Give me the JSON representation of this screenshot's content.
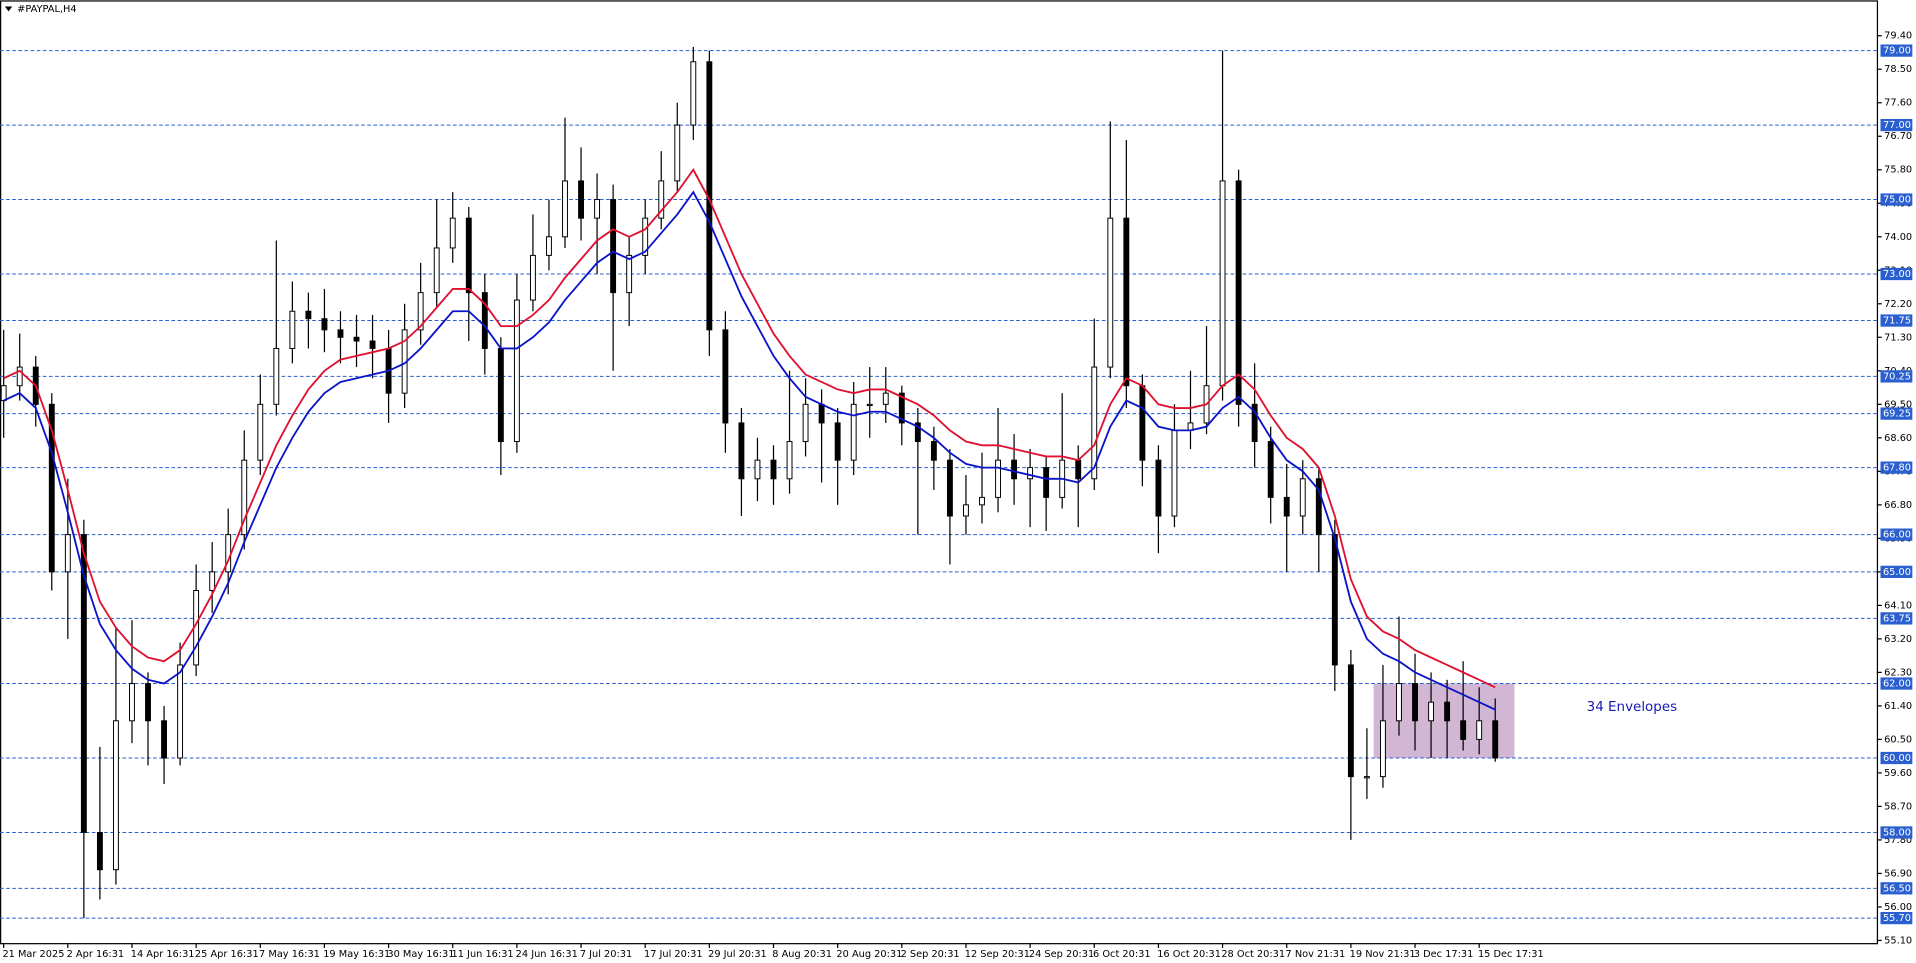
{
  "chart_data": {
    "type": "candlestick",
    "title": "#PAYPAL,H4",
    "annotation": "34 Envelopes",
    "categories": [
      "21 Mar 2025",
      null,
      null,
      null,
      "2 Apr 16:31",
      null,
      null,
      null,
      "14 Apr 16:31",
      null,
      null,
      null,
      "25 Apr 16:31",
      null,
      null,
      null,
      "7 May 16:31",
      null,
      null,
      null,
      "19 May 16:31",
      null,
      null,
      null,
      "30 May 16:31",
      null,
      null,
      null,
      "11 Jun 16:31",
      null,
      null,
      null,
      "24 Jun 16:31",
      null,
      null,
      null,
      "7 Jul 20:31",
      null,
      null,
      null,
      "17 Jul 20:31",
      null,
      null,
      null,
      "29 Jul 20:31",
      null,
      null,
      null,
      "8 Aug 20:31",
      null,
      null,
      null,
      "20 Aug 20:31",
      null,
      null,
      null,
      "2 Sep 20:31",
      null,
      null,
      null,
      "12 Sep 20:31",
      null,
      null,
      null,
      "24 Sep 20:31",
      null,
      null,
      null,
      "6 Oct 20:31",
      null,
      null,
      null,
      "16 Oct 20:31",
      null,
      null,
      null,
      "28 Oct 20:31",
      null,
      null,
      null,
      "7 Nov 21:31",
      null,
      null,
      null,
      "19 Nov 21:31",
      null,
      null,
      null,
      "3 Dec 17:31",
      null,
      null,
      null,
      "15 Dec 17:31",
      null
    ],
    "open": [
      69.6,
      70.0,
      70.5,
      69.5,
      65.0,
      66.0,
      58.0,
      57.0,
      61.0,
      62.0,
      61.0,
      60.0,
      62.5,
      64.5,
      65.0,
      66.0,
      68.0,
      69.5,
      71.0,
      72.0,
      71.8,
      71.5,
      71.3,
      71.2,
      71.0,
      69.8,
      71.5,
      72.5,
      73.7,
      74.5,
      72.5,
      71.0,
      68.5,
      72.3,
      73.5,
      74.0,
      75.5,
      74.5,
      75.0,
      72.5,
      73.5,
      74.5,
      75.5,
      77.0,
      78.7,
      71.5,
      69.0,
      67.5,
      68.0,
      67.5,
      68.5,
      69.5,
      69.0,
      68.0,
      69.5,
      69.5,
      69.8,
      69.0,
      68.5,
      68.0,
      66.5,
      66.8,
      67.0,
      68.0,
      67.5,
      67.8,
      67.0,
      68.0,
      67.5,
      70.5,
      74.5,
      70.0,
      68.0,
      66.5,
      68.8,
      69.0,
      70.0,
      75.5,
      69.5,
      68.5,
      67.0,
      66.5,
      67.5,
      66.0,
      62.5,
      59.5,
      59.5,
      61.0,
      62.0,
      61.0,
      61.5,
      61.0,
      60.5,
      61.0
    ],
    "high": [
      71.5,
      71.4,
      70.8,
      69.8,
      67.5,
      66.4,
      60.3,
      63.5,
      63.7,
      62.3,
      61.4,
      63.1,
      65.2,
      65.8,
      66.7,
      68.8,
      70.3,
      73.9,
      72.8,
      72.5,
      72.6,
      72.0,
      71.9,
      71.9,
      71.5,
      72.2,
      73.3,
      75.0,
      75.2,
      74.8,
      73.0,
      71.3,
      73.0,
      74.6,
      75.0,
      77.2,
      76.4,
      75.7,
      75.4,
      74.0,
      75.0,
      76.3,
      77.6,
      79.1,
      79.0,
      72.0,
      69.4,
      68.6,
      68.4,
      70.4,
      70.2,
      69.9,
      69.4,
      70.1,
      70.5,
      70.5,
      70.0,
      69.4,
      68.9,
      68.3,
      67.6,
      68.2,
      69.4,
      68.7,
      68.3,
      68.1,
      69.8,
      68.4,
      71.8,
      77.1,
      76.6,
      70.3,
      68.4,
      69.5,
      70.4,
      71.6,
      79.0,
      75.8,
      70.6,
      68.9,
      67.9,
      68.0,
      67.8,
      66.4,
      62.9,
      60.8,
      62.5,
      63.8,
      62.8,
      62.3,
      62.1,
      62.6,
      61.9,
      61.6
    ],
    "low": [
      68.6,
      69.6,
      68.9,
      64.5,
      63.2,
      55.7,
      56.2,
      56.6,
      60.4,
      59.8,
      59.3,
      59.8,
      62.2,
      63.9,
      64.4,
      65.6,
      67.6,
      69.2,
      70.6,
      71.0,
      70.9,
      70.6,
      70.5,
      70.2,
      69.0,
      69.4,
      71.1,
      72.1,
      73.3,
      71.2,
      70.3,
      67.6,
      68.2,
      72.0,
      73.1,
      73.7,
      73.9,
      73.0,
      70.4,
      71.6,
      73.0,
      74.2,
      75.2,
      76.6,
      70.8,
      68.2,
      66.5,
      66.9,
      66.8,
      67.1,
      68.1,
      67.4,
      66.8,
      67.6,
      68.6,
      69.0,
      68.4,
      66.0,
      67.2,
      65.2,
      66.0,
      66.3,
      66.6,
      66.8,
      66.2,
      66.1,
      66.7,
      66.2,
      67.2,
      70.2,
      69.4,
      67.3,
      65.5,
      66.2,
      68.3,
      68.7,
      69.6,
      68.9,
      67.8,
      66.3,
      65.0,
      66.0,
      65.0,
      61.8,
      57.8,
      58.9,
      59.2,
      60.6,
      60.2,
      60.0,
      60.0,
      60.2,
      60.1,
      59.9
    ],
    "close": [
      70.0,
      70.5,
      69.5,
      65.0,
      66.0,
      58.0,
      57.0,
      61.0,
      62.0,
      61.0,
      60.0,
      62.5,
      64.5,
      65.0,
      66.0,
      68.0,
      69.5,
      71.0,
      72.0,
      71.8,
      71.5,
      71.3,
      71.2,
      71.0,
      69.8,
      71.5,
      72.5,
      73.7,
      74.5,
      72.5,
      71.0,
      68.5,
      72.3,
      73.5,
      74.0,
      75.5,
      74.5,
      75.0,
      72.5,
      73.5,
      74.5,
      75.5,
      77.0,
      78.7,
      71.5,
      69.0,
      67.5,
      68.0,
      67.5,
      68.5,
      69.5,
      69.0,
      68.0,
      69.5,
      69.5,
      69.8,
      69.0,
      68.5,
      68.0,
      66.5,
      66.8,
      67.0,
      68.0,
      67.5,
      67.8,
      67.0,
      68.0,
      67.5,
      70.5,
      74.5,
      70.0,
      68.0,
      66.5,
      68.8,
      69.0,
      70.0,
      75.5,
      69.5,
      68.5,
      67.0,
      66.5,
      67.5,
      66.0,
      62.5,
      59.5,
      59.5,
      61.0,
      62.0,
      61.0,
      61.5,
      61.0,
      60.5,
      61.0,
      60.0
    ],
    "up_color": "#ffffff",
    "down_color": "#000000",
    "envelopes": [
      {
        "color": "#e0102f",
        "values": [
          70.2,
          70.4,
          70.0,
          68.8,
          67.2,
          65.5,
          64.2,
          63.5,
          63.0,
          62.7,
          62.6,
          62.9,
          63.6,
          64.4,
          65.3,
          66.4,
          67.4,
          68.4,
          69.2,
          69.9,
          70.4,
          70.7,
          70.8,
          70.9,
          71.0,
          71.2,
          71.6,
          72.1,
          72.6,
          72.6,
          72.2,
          71.6,
          71.6,
          71.9,
          72.3,
          72.9,
          73.4,
          73.9,
          74.2,
          74.0,
          74.2,
          74.7,
          75.2,
          75.8,
          75.0,
          74.0,
          73.0,
          72.2,
          71.4,
          70.8,
          70.3,
          70.1,
          69.9,
          69.8,
          69.9,
          69.9,
          69.7,
          69.5,
          69.2,
          68.8,
          68.5,
          68.4,
          68.4,
          68.3,
          68.2,
          68.1,
          68.1,
          68.0,
          68.4,
          69.5,
          70.2,
          70.0,
          69.5,
          69.4,
          69.4,
          69.5,
          70.0,
          70.3,
          69.9,
          69.2,
          68.6,
          68.3,
          67.8,
          66.5,
          64.8,
          63.8,
          63.4,
          63.2,
          62.9,
          62.7,
          62.5,
          62.3,
          62.1,
          61.9
        ]
      },
      {
        "color": "#0a14c8",
        "values": [
          69.6,
          69.8,
          69.4,
          68.2,
          66.6,
          64.9,
          63.6,
          62.9,
          62.4,
          62.1,
          62.0,
          62.3,
          63.0,
          63.8,
          64.7,
          65.8,
          66.8,
          67.8,
          68.6,
          69.3,
          69.8,
          70.1,
          70.2,
          70.3,
          70.4,
          70.6,
          71.0,
          71.5,
          72.0,
          72.0,
          71.6,
          71.0,
          71.0,
          71.3,
          71.7,
          72.3,
          72.8,
          73.3,
          73.6,
          73.4,
          73.6,
          74.1,
          74.6,
          75.2,
          74.4,
          73.4,
          72.4,
          71.6,
          70.8,
          70.2,
          69.7,
          69.5,
          69.3,
          69.2,
          69.3,
          69.3,
          69.1,
          68.9,
          68.6,
          68.2,
          67.9,
          67.8,
          67.8,
          67.7,
          67.6,
          67.5,
          67.5,
          67.4,
          67.8,
          68.9,
          69.6,
          69.4,
          68.9,
          68.8,
          68.8,
          68.9,
          69.4,
          69.7,
          69.3,
          68.6,
          68.0,
          67.7,
          67.2,
          65.9,
          64.2,
          63.2,
          62.8,
          62.6,
          62.3,
          62.1,
          61.9,
          61.7,
          61.5,
          61.3
        ]
      }
    ],
    "zone": {
      "ymin": 60,
      "ymax": 62,
      "color": "#c9aacb"
    },
    "level_color": "#2a5fd0",
    "levels": [
      {
        "value": 79,
        "label": "79.00"
      },
      {
        "value": 77,
        "label": "77.00"
      },
      {
        "value": 75,
        "label": "75.00"
      },
      {
        "value": 73,
        "label": "73.00"
      },
      {
        "value": 71.75,
        "label": "71.75"
      },
      {
        "value": 70.25,
        "label": "70.25"
      },
      {
        "value": 69.25,
        "label": "69.25"
      },
      {
        "value": 67.8,
        "label": "67.80"
      },
      {
        "value": 66,
        "label": "66.00"
      },
      {
        "value": 65,
        "label": "65.00"
      },
      {
        "value": 63.75,
        "label": "63.75"
      },
      {
        "value": 62,
        "label": "62.00"
      },
      {
        "value": 60,
        "label": "60.00"
      },
      {
        "value": 58,
        "label": "58.00"
      },
      {
        "value": 56.5,
        "label": "56.50"
      },
      {
        "value": 55.7,
        "label": "55.70"
      }
    ],
    "ylim": [
      55.03,
      80.35
    ],
    "yticks": [
      {
        "value": 79.4,
        "label": "79.40"
      },
      {
        "value": 78.5,
        "label": "78.50"
      },
      {
        "value": 77.6,
        "label": "77.60"
      },
      {
        "value": 76.7,
        "label": "76.70"
      },
      {
        "value": 75.8,
        "label": "75.80"
      },
      {
        "value": 74.9,
        "label": "74.90"
      },
      {
        "value": 74,
        "label": "74.00"
      },
      {
        "value": 73.1,
        "label": "73.10"
      },
      {
        "value": 72.2,
        "label": "72.20"
      },
      {
        "value": 71.3,
        "label": "71.30"
      },
      {
        "value": 70.4,
        "label": "70.40"
      },
      {
        "value": 69.5,
        "label": "69.50"
      },
      {
        "value": 68.6,
        "label": "68.60"
      },
      {
        "value": 67.7,
        "label": "67.70"
      },
      {
        "value": 66.8,
        "label": "66.80"
      },
      {
        "value": 65.9,
        "label": "65.90"
      },
      {
        "value": 65,
        "label": "65.00"
      },
      {
        "value": 64.1,
        "label": "64.10"
      },
      {
        "value": 63.2,
        "label": "63.20"
      },
      {
        "value": 62.3,
        "label": "62.30"
      },
      {
        "value": 61.4,
        "label": "61.40"
      },
      {
        "value": 60.5,
        "label": "60.50"
      },
      {
        "value": 59.6,
        "label": "59.60"
      },
      {
        "value": 58.7,
        "label": "58.70"
      },
      {
        "value": 57.8,
        "label": "57.80"
      },
      {
        "value": 56.9,
        "label": "56.90"
      },
      {
        "value": 56,
        "label": "56.00"
      },
      {
        "value": 55.1,
        "label": "55.10"
      }
    ]
  }
}
